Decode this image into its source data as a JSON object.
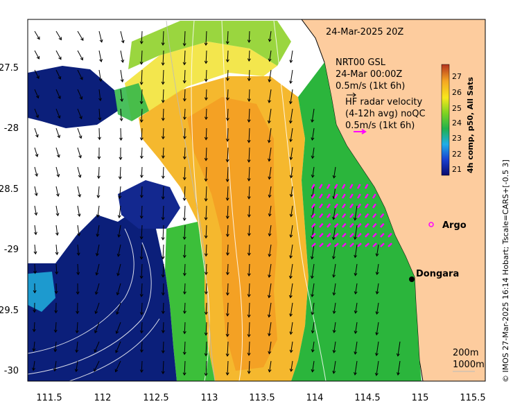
{
  "map": {
    "timestamp": "24-Mar-2025 20Z",
    "model_title": "NRT00 GSL",
    "model_time": "24-Mar 00:00Z",
    "model_scale": "0.5m/s (1kt 6h)",
    "radar_label_1": "HF radar velocity",
    "radar_label_2": "(4-12h avg) noQC",
    "radar_scale": "0.5m/s (1kt 6h)",
    "place_argo": "Argo",
    "place_dongara": "Dongara",
    "contour_label_1": "200m",
    "contour_label_2": "1000m",
    "credit": "© IMOS 27-Mar-2025 16:14 Hobart; Tscale=CARS+[-0.5 3]",
    "colors": {
      "land": "#fdcc9e",
      "radar_arrow": "#ff00ff",
      "warm": "#f5a623",
      "green": "#22b14c",
      "navy": "#0b1f7a"
    }
  },
  "axes": {
    "x_ticks": [
      "111.5",
      "112",
      "112.5",
      "113",
      "113.5",
      "114",
      "114.5",
      "115",
      "115.5"
    ],
    "y_ticks": [
      "-27.5",
      "-28",
      "-28.5",
      "-29",
      "-29.5",
      "-30"
    ]
  },
  "colorbar": {
    "title": "4h comp, p50, All Sats",
    "ticks": [
      "27",
      "26",
      "25",
      "24",
      "23",
      "22",
      "21"
    ]
  }
}
